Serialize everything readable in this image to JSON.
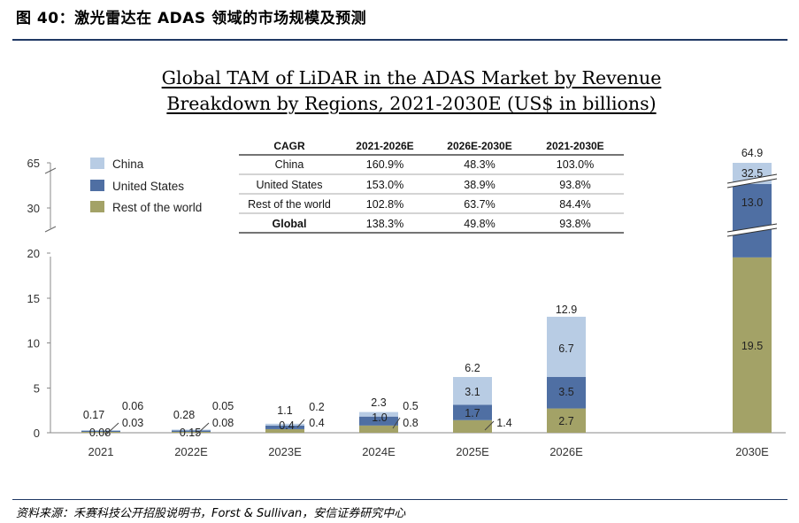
{
  "figure_title": "图 40：激光雷达在 ADAS 领域的市场规模及预测",
  "source": "资料来源：禾赛科技公开招股说明书，Forst & Sullivan，安信证券研究中心",
  "colors": {
    "china": "#b8cce4",
    "us": "#4f6fa3",
    "rest": "#a3a267",
    "axis": "#888888",
    "rule": "#1f3864"
  },
  "cagr_table": {
    "headers": [
      "CAGR",
      "2021-2026E",
      "2026E-2030E",
      "2021-2030E"
    ],
    "rows": [
      [
        "China",
        "160.9%",
        "48.3%",
        "103.0%"
      ],
      [
        "United States",
        "153.0%",
        "38.9%",
        "93.8%"
      ],
      [
        "Rest of the world",
        "102.8%",
        "63.7%",
        "84.4%"
      ],
      [
        "Global",
        "138.3%",
        "49.8%",
        "93.8%"
      ]
    ]
  },
  "chart_data": {
    "type": "bar",
    "stacked": true,
    "title": "Global TAM of LiDAR in the ADAS Market by Revenue Breakdown by Regions, 2021-2030E (US$ in billions)",
    "categories": [
      "2021",
      "2022E",
      "2023E",
      "2024E",
      "2025E",
      "2026E",
      "2030E"
    ],
    "series": [
      {
        "name": "China",
        "values": [
          0.06,
          0.05,
          0.2,
          0.5,
          3.1,
          6.7,
          32.5
        ]
      },
      {
        "name": "United States",
        "values": [
          0.03,
          0.15,
          0.4,
          1.0,
          1.7,
          3.5,
          13.0
        ]
      },
      {
        "name": "Rest of the world",
        "values": [
          0.08,
          0.08,
          0.4,
          0.8,
          1.4,
          2.7,
          19.5
        ]
      }
    ],
    "totals": [
      0.17,
      0.28,
      1.1,
      2.3,
      6.2,
      12.9,
      64.9
    ],
    "bar_labels": [
      {
        "total": "0.17",
        "china": "0.06",
        "us": "0.03",
        "rest": "0.08"
      },
      {
        "total": "0.28",
        "china": "0.05",
        "us": "0.15",
        "rest": "0.08"
      },
      {
        "total": "1.1",
        "china": "0.2",
        "us": "0.4",
        "rest": "0.4"
      },
      {
        "total": "2.3",
        "china": "0.5",
        "us": "1.0",
        "rest": "0.8"
      },
      {
        "total": "6.2",
        "china": "3.1",
        "us": "1.7",
        "rest": "1.4"
      },
      {
        "total": "12.9",
        "china": "6.7",
        "us": "3.5",
        "rest": "2.7"
      },
      {
        "total": "64.9",
        "china": "32.5",
        "us": "13.0",
        "rest": "19.5"
      }
    ],
    "y_ticks": [
      "0",
      "5",
      "10",
      "15",
      "20",
      "30",
      "65"
    ],
    "ylim": [
      0,
      65
    ],
    "axis_break": true,
    "legend": [
      "China",
      "United States",
      "Rest of the world"
    ],
    "legend_position": "top-left"
  }
}
